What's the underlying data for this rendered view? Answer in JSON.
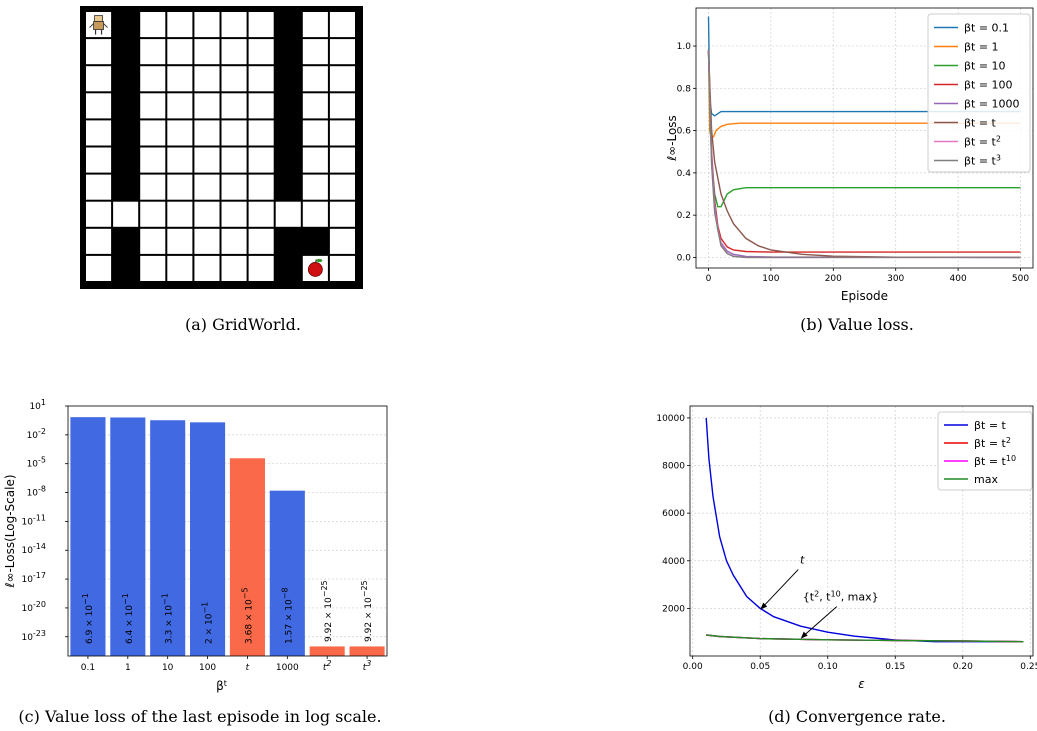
{
  "captions": {
    "a": "(a) GridWorld.",
    "b": "(b) Value loss.",
    "c": "(c) Value loss of the last episode in log scale.",
    "d": "(d) Convergence rate."
  },
  "gridworld": {
    "rows": 10,
    "cols": 10,
    "walls": [
      [
        0,
        1
      ],
      [
        1,
        1
      ],
      [
        2,
        1
      ],
      [
        3,
        1
      ],
      [
        4,
        1
      ],
      [
        5,
        1
      ],
      [
        6,
        1
      ],
      [
        0,
        7
      ],
      [
        1,
        7
      ],
      [
        2,
        7
      ],
      [
        3,
        7
      ],
      [
        4,
        7
      ],
      [
        5,
        7
      ],
      [
        6,
        7
      ],
      [
        8,
        1
      ],
      [
        9,
        1
      ],
      [
        8,
        7
      ],
      [
        8,
        8
      ],
      [
        9,
        7
      ]
    ],
    "agent": [
      0,
      0
    ],
    "goal": [
      9,
      8
    ],
    "agent_icon": "robot-icon",
    "goal_icon": "apple-icon"
  },
  "chart_data": [
    {
      "id": "b",
      "type": "line",
      "xlabel": "Episode",
      "ylabel": "ℓ∞-Loss",
      "xlim": [
        -20,
        520
      ],
      "ylim": [
        -0.05,
        1.18
      ],
      "xticks": [
        "0",
        "100",
        "200",
        "300",
        "400",
        "500"
      ],
      "yticks": [
        "0.0",
        "0.2",
        "0.4",
        "0.6",
        "0.8",
        "1.0"
      ],
      "grid": true,
      "legend_position": "top-right",
      "series": [
        {
          "name": "βt = 0.1",
          "color": "#1f77b4",
          "x": [
            0,
            2,
            5,
            10,
            15,
            20,
            30,
            50,
            100,
            500
          ],
          "y": [
            1.14,
            0.75,
            0.68,
            0.67,
            0.68,
            0.69,
            0.69,
            0.69,
            0.69,
            0.69
          ]
        },
        {
          "name": "βt = 1",
          "color": "#ff7f0e",
          "x": [
            0,
            2,
            4,
            8,
            12,
            20,
            30,
            50,
            100,
            500
          ],
          "y": [
            0.98,
            0.6,
            0.57,
            0.57,
            0.6,
            0.62,
            0.63,
            0.635,
            0.635,
            0.635
          ]
        },
        {
          "name": "βt = 10",
          "color": "#2ca02c",
          "x": [
            0,
            3,
            6,
            10,
            15,
            20,
            25,
            30,
            40,
            60,
            100,
            500
          ],
          "y": [
            0.98,
            0.6,
            0.42,
            0.3,
            0.24,
            0.24,
            0.27,
            0.3,
            0.32,
            0.33,
            0.33,
            0.33
          ]
        },
        {
          "name": "βt = 100",
          "color": "#d62728",
          "x": [
            0,
            5,
            10,
            15,
            20,
            30,
            40,
            60,
            100,
            500
          ],
          "y": [
            0.98,
            0.5,
            0.27,
            0.15,
            0.09,
            0.05,
            0.035,
            0.028,
            0.025,
            0.025
          ]
        },
        {
          "name": "βt = 1000",
          "color": "#9467bd",
          "x": [
            0,
            5,
            10,
            15,
            20,
            30,
            40,
            60,
            100,
            500
          ],
          "y": [
            0.98,
            0.48,
            0.25,
            0.13,
            0.07,
            0.03,
            0.015,
            0.005,
            0.002,
            0.0
          ]
        },
        {
          "name": "βt = t",
          "color": "#8c564b",
          "x": [
            0,
            5,
            10,
            20,
            30,
            40,
            60,
            80,
            100,
            150,
            200,
            300,
            500
          ],
          "y": [
            0.98,
            0.6,
            0.45,
            0.3,
            0.22,
            0.16,
            0.09,
            0.055,
            0.035,
            0.015,
            0.006,
            0.001,
            0.0
          ]
        },
        {
          "name": "βt = t2",
          "color": "#e377c2",
          "x": [
            0,
            5,
            10,
            20,
            30,
            40,
            60,
            100,
            500
          ],
          "y": [
            0.98,
            0.45,
            0.22,
            0.06,
            0.02,
            0.006,
            0.0,
            0.0,
            0.0
          ]
        },
        {
          "name": "βt = t3",
          "color": "#7f7f7f",
          "x": [
            0,
            5,
            10,
            20,
            30,
            40,
            60,
            100,
            500
          ],
          "y": [
            0.98,
            0.44,
            0.21,
            0.055,
            0.018,
            0.005,
            0.0,
            0.0,
            0.0
          ]
        }
      ],
      "legend": [
        {
          "base": "βt = 0.1",
          "sup": ""
        },
        {
          "base": "βt = 1",
          "sup": ""
        },
        {
          "base": "βt = 10",
          "sup": ""
        },
        {
          "base": "βt = 100",
          "sup": ""
        },
        {
          "base": "βt = 1000",
          "sup": ""
        },
        {
          "base": "βt = t",
          "sup": ""
        },
        {
          "base": "βt = t",
          "sup": "2"
        },
        {
          "base": "βt = t",
          "sup": "3"
        }
      ]
    },
    {
      "id": "c",
      "type": "bar",
      "scale": "log",
      "xlabel": "βt",
      "ylabel": "ℓ∞-Loss(Log-Scale)",
      "ylim_exp": [
        -25,
        1
      ],
      "yticks": [
        "10^1",
        "10^-2",
        "10^-5",
        "10^-8",
        "10^-11",
        "10^-14",
        "10^-17",
        "10^-20",
        "10^-23"
      ],
      "categories": [
        "0.1",
        "1",
        "10",
        "100",
        "t",
        "1000",
        "t^2",
        "t^3"
      ],
      "values": [
        0.69,
        0.64,
        0.33,
        0.2,
        3.68e-05,
        1.57e-08,
        9.92e-25,
        9.92e-25
      ],
      "labels": [
        "6.9 × 10^−1",
        "6.4 × 10^−1",
        "3.3 × 10^−1",
        "2 × 10^−1",
        "3.68 × 10^−5",
        "1.57 × 10^−8",
        "9.92 × 10^−25",
        "9.92 × 10^−25"
      ],
      "colors": [
        "#4169e1",
        "#4169e1",
        "#4169e1",
        "#4169e1",
        "#fa6a4a",
        "#4169e1",
        "#fa6a4a",
        "#fa6a4a"
      ],
      "grid": true
    },
    {
      "id": "d",
      "type": "line",
      "xlabel": "ε",
      "ylabel": "",
      "xlim": [
        -0.002,
        0.252
      ],
      "ylim": [
        0,
        10500
      ],
      "xticks": [
        "0.00",
        "0.05",
        "0.10",
        "0.15",
        "0.20",
        "0.25"
      ],
      "yticks": [
        "2000",
        "4000",
        "6000",
        "8000",
        "10000"
      ],
      "grid": true,
      "legend_position": "top-right",
      "series": [
        {
          "name": "βt = t",
          "color": "#0000dd",
          "x": [
            0.01,
            0.012,
            0.015,
            0.02,
            0.025,
            0.03,
            0.04,
            0.05,
            0.06,
            0.08,
            0.1,
            0.12,
            0.15,
            0.18,
            0.2,
            0.245
          ],
          "y": [
            10000,
            8300,
            6700,
            5000,
            4000,
            3400,
            2500,
            2000,
            1650,
            1250,
            1000,
            830,
            670,
            600,
            600,
            600
          ]
        },
        {
          "name": "βt = t2",
          "color": "#ee0000",
          "x": [
            0.01,
            0.02,
            0.05,
            0.1,
            0.15,
            0.2,
            0.245
          ],
          "y": [
            880,
            820,
            730,
            680,
            650,
            630,
            600
          ]
        },
        {
          "name": "βt = t10",
          "color": "#ff00ff",
          "x": [
            0.01,
            0.02,
            0.05,
            0.1,
            0.15,
            0.2,
            0.245
          ],
          "y": [
            880,
            820,
            730,
            680,
            650,
            630,
            600
          ]
        },
        {
          "name": "max",
          "color": "#228b22",
          "x": [
            0.01,
            0.02,
            0.05,
            0.1,
            0.15,
            0.2,
            0.245
          ],
          "y": [
            880,
            820,
            730,
            680,
            650,
            630,
            600
          ]
        }
      ],
      "legend": [
        {
          "base": "βt = t",
          "sup": ""
        },
        {
          "base": "βt = t",
          "sup": "2"
        },
        {
          "base": "βt = t",
          "sup": "10"
        },
        {
          "base": "max",
          "sup": ""
        }
      ],
      "annotations": [
        {
          "text": "t",
          "at": [
            0.05,
            1950
          ],
          "arrow": true
        },
        {
          "text": "{t2, t10, max}",
          "at": [
            0.08,
            730
          ],
          "arrow": true
        }
      ]
    }
  ]
}
